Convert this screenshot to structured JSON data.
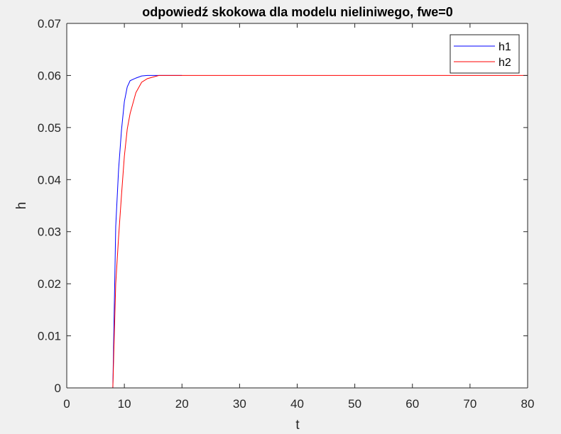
{
  "chart_data": {
    "type": "line",
    "title": "odpowiedź skokowa dla modelu nieliniwego, fwe=0",
    "xlabel": "t",
    "ylabel": "h",
    "xlim": [
      0,
      80
    ],
    "ylim": [
      0,
      0.07
    ],
    "xticks": [
      0,
      10,
      20,
      30,
      40,
      50,
      60,
      70,
      80
    ],
    "yticks": [
      0,
      0.01,
      0.02,
      0.03,
      0.04,
      0.05,
      0.06,
      0.07
    ],
    "xtick_labels": [
      "0",
      "10",
      "20",
      "30",
      "40",
      "50",
      "60",
      "70",
      "80"
    ],
    "ytick_labels": [
      "0",
      "0.01",
      "0.02",
      "0.03",
      "0.04",
      "0.05",
      "0.06",
      "0.07"
    ],
    "grid": false,
    "legend_position": "top-right",
    "series": [
      {
        "name": "h1",
        "color": "#0000ff",
        "x": [
          0,
          8,
          8.5,
          9,
          9.5,
          10,
          10.5,
          11,
          12,
          13,
          14,
          15,
          16,
          18,
          20
        ],
        "y": [
          0,
          0,
          0.031,
          0.042,
          0.0495,
          0.055,
          0.0578,
          0.059,
          0.0595,
          0.0599,
          0.06,
          0.06,
          0.06,
          0.06,
          0.06
        ]
      },
      {
        "name": "h2",
        "color": "#ff0000",
        "x": [
          0,
          8,
          8.5,
          9,
          9.5,
          10,
          10.5,
          11,
          12,
          13,
          14,
          15,
          16,
          18,
          20,
          80
        ],
        "y": [
          0,
          0,
          0.02,
          0.029,
          0.037,
          0.0445,
          0.0497,
          0.0527,
          0.0567,
          0.0587,
          0.0594,
          0.0597,
          0.06,
          0.06,
          0.06,
          0.06
        ]
      }
    ]
  }
}
